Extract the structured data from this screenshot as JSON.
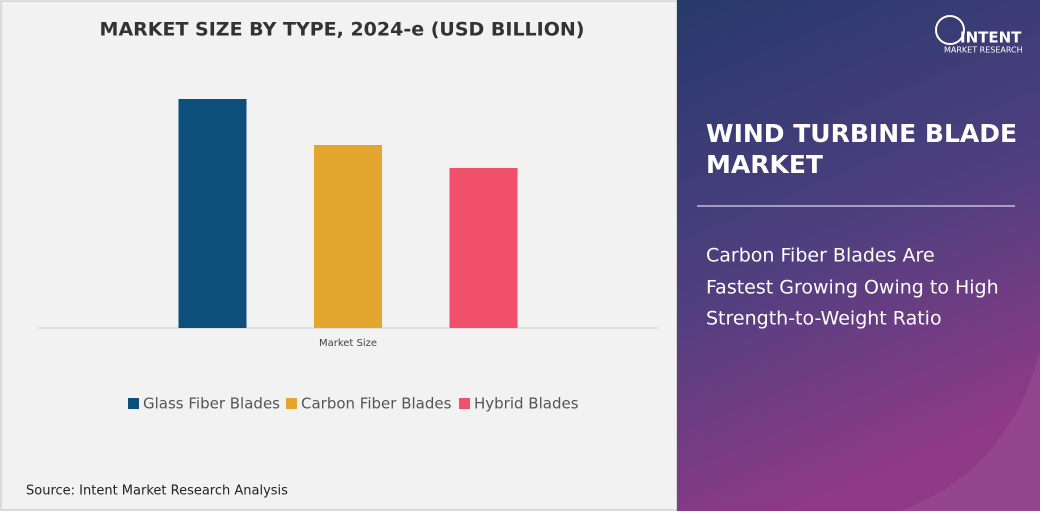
{
  "chart_data": {
    "type": "bar",
    "title": "MARKET SIZE BY TYPE, 2024-e (USD BILLION)",
    "categories": [
      "Market Size"
    ],
    "series": [
      {
        "name": "Glass Fiber Blades",
        "color": "#0b4f7a",
        "values": [
          229
        ]
      },
      {
        "name": "Carbon Fiber Blades",
        "color": "#e3a72f",
        "values": [
          183
        ]
      },
      {
        "name": "Hybrid Blades",
        "color": "#f0506a",
        "values": [
          160
        ]
      }
    ],
    "ylim": [
      0,
      270
    ],
    "legend": "bottom"
  },
  "source": "Source: Intent Market Research Analysis",
  "panel": {
    "logo": "INTENT",
    "logo_sub": "MARKET RESEARCH",
    "title_lines": [
      "WIND TURBINE BLADE",
      "MARKET"
    ],
    "subtitle_lines": [
      "Carbon Fiber Blades Are",
      "Fastest Growing Owing to High",
      "Strength-to-Weight Ratio"
    ]
  }
}
